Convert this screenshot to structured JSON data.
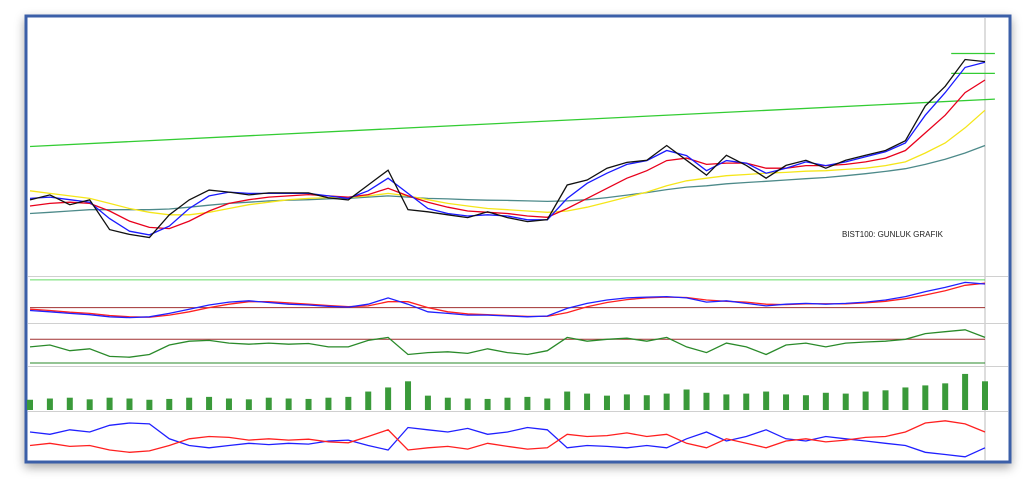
{
  "chart_data": [
    {
      "type": "line",
      "title": "BIST100: GUNLUK GRAFIK",
      "ylim": [
        0,
        100
      ],
      "series": [
        {
          "color": "#33cc33",
          "x": [
            0,
            48.5
          ],
          "values": [
            50.6,
            69.4
          ]
        },
        {
          "color": "#33cc33",
          "x": [
            46.3,
            48.5
          ],
          "values": [
            87.5,
            87.5
          ]
        },
        {
          "color": "#33cc33",
          "x": [
            46.3,
            48.5
          ],
          "values": [
            79.6,
            79.6
          ]
        },
        {
          "color": "#4d8a8a",
          "values": [
            24,
            24.5,
            25,
            25.5,
            25.5,
            25.5,
            25.5,
            25.8,
            26.5,
            27.3,
            28,
            28.5,
            29,
            29.3,
            29.5,
            29.8,
            30,
            30.5,
            31,
            30.5,
            30,
            29.8,
            29.5,
            29.3,
            29.2,
            29,
            28.8,
            29,
            29.5,
            30.3,
            31.3,
            32.3,
            33.5,
            34.5,
            35,
            35.8,
            36.3,
            36.8,
            37.3,
            37.8,
            38.3,
            39,
            39.8,
            40.7,
            41.8,
            43.5,
            45.5,
            48,
            51
          ]
        },
        {
          "color": "#f5e61a",
          "values": [
            33,
            32,
            31,
            30,
            28,
            26,
            24.5,
            23.5,
            23.5,
            24.5,
            26,
            27.5,
            28.5,
            29.5,
            30,
            30.3,
            30.3,
            31,
            32,
            31,
            29.5,
            28,
            27,
            26,
            25.5,
            25,
            24.5,
            25,
            26.5,
            28.5,
            30.5,
            32.5,
            35,
            37,
            38,
            39,
            39.5,
            40,
            40.3,
            40.8,
            41,
            41.5,
            42,
            43,
            44.5,
            48,
            52,
            58,
            65
          ]
        },
        {
          "color": "#e8001c",
          "values": [
            27,
            28,
            28.5,
            28,
            25,
            21,
            18.5,
            18,
            21,
            25,
            28,
            29.5,
            30.5,
            31,
            31.5,
            31,
            30.5,
            31.5,
            34,
            31,
            28.5,
            26.5,
            25,
            24.5,
            24,
            23,
            22.5,
            26,
            30,
            34,
            38,
            41,
            45,
            46,
            43.5,
            44,
            44,
            42,
            42,
            43,
            43,
            43.5,
            44.5,
            46,
            49,
            56,
            63,
            72,
            77
          ]
        },
        {
          "color": "#1a1aff",
          "values": [
            30,
            30.5,
            29.5,
            28.5,
            22,
            17,
            15.5,
            19,
            26,
            31,
            32.5,
            32,
            32,
            32,
            32,
            31,
            30,
            33,
            38,
            32,
            26,
            24,
            23,
            23.5,
            23,
            21.5,
            21.5,
            30,
            36,
            40,
            43.5,
            45,
            49,
            47,
            41,
            45,
            44,
            40,
            42,
            44.5,
            43,
            44.5,
            46.5,
            48.5,
            52,
            63,
            72,
            82,
            84
          ]
        },
        {
          "color": "#111111",
          "values": [
            29.4,
            31.4,
            27.5,
            29.4,
            17.6,
            15.7,
            14.5,
            23.5,
            29.4,
            33.3,
            32.5,
            31.4,
            32.2,
            32.2,
            32.2,
            30.2,
            29.4,
            35.3,
            41.2,
            25.5,
            24.7,
            23.5,
            22.4,
            24.7,
            22.4,
            20.8,
            21.6,
            35.3,
            37.3,
            42,
            44.3,
            45.1,
            51,
            45.1,
            39.2,
            47.1,
            43.1,
            38,
            43.1,
            45.1,
            42,
            45.1,
            47.1,
            49,
            52.9,
            66.7,
            74.5,
            85.1,
            84.3
          ]
        }
      ]
    },
    {
      "type": "line",
      "ylim": [
        0,
        100
      ],
      "hlines": [
        {
          "value": 98,
          "color": "#66dd66"
        },
        {
          "value": 31.8,
          "color": "#a03030"
        }
      ],
      "series": [
        {
          "color": "#ff2020",
          "values": [
            28,
            25,
            21,
            18,
            13,
            10,
            9,
            14,
            22,
            32,
            40,
            46,
            46,
            43,
            40,
            37,
            34,
            36,
            46,
            46,
            32,
            22,
            17,
            15,
            13,
            11,
            11,
            20,
            34,
            44,
            51,
            55,
            57,
            56,
            50,
            47,
            45,
            40,
            39,
            41,
            41,
            41,
            43,
            47,
            53,
            62,
            72,
            85,
            90
          ]
        },
        {
          "color": "#2020ff",
          "values": [
            25,
            22,
            18,
            15,
            10,
            8,
            10,
            18,
            28,
            38,
            45,
            48,
            44,
            40,
            38,
            35,
            33,
            40,
            55,
            40,
            22,
            18,
            14,
            14,
            12,
            10,
            12,
            30,
            42,
            50,
            55,
            57,
            58,
            55,
            45,
            48,
            42,
            36,
            40,
            42,
            40,
            42,
            45,
            50,
            58,
            70,
            80,
            92,
            88
          ]
        }
      ]
    },
    {
      "type": "line",
      "ylim": [
        0,
        100
      ],
      "hlines": [
        {
          "value": 65,
          "color": "#a03030"
        },
        {
          "value": 2.5,
          "color": "#2a8a2a"
        }
      ],
      "series": [
        {
          "color": "#2a8a2a",
          "values": [
            45,
            50,
            35,
            40,
            20,
            18,
            25,
            50,
            60,
            62,
            55,
            52,
            55,
            52,
            54,
            45,
            45,
            62,
            70,
            25,
            30,
            32,
            28,
            40,
            30,
            25,
            35,
            70,
            60,
            65,
            68,
            60,
            70,
            45,
            30,
            55,
            45,
            25,
            50,
            55,
            45,
            55,
            58,
            60,
            65,
            80,
            85,
            90,
            70
          ]
        }
      ]
    },
    {
      "type": "bar",
      "ylim": [
        0,
        100
      ],
      "color": "#3a9a3a",
      "values": [
        25,
        28,
        30,
        26,
        30,
        28,
        25,
        27,
        30,
        32,
        28,
        26,
        30,
        28,
        27,
        30,
        32,
        45,
        55,
        70,
        35,
        30,
        28,
        27,
        30,
        32,
        28,
        45,
        40,
        35,
        38,
        36,
        40,
        50,
        42,
        38,
        40,
        45,
        38,
        36,
        42,
        40,
        45,
        48,
        55,
        60,
        65,
        88,
        70
      ]
    },
    {
      "type": "line",
      "ylim": [
        0,
        100
      ],
      "series": [
        {
          "color": "#2020ff",
          "values": [
            60,
            55,
            65,
            60,
            75,
            80,
            78,
            45,
            30,
            25,
            30,
            35,
            32,
            35,
            33,
            40,
            42,
            30,
            20,
            70,
            65,
            60,
            68,
            55,
            60,
            70,
            65,
            25,
            30,
            28,
            25,
            30,
            25,
            45,
            60,
            40,
            50,
            65,
            45,
            40,
            50,
            45,
            40,
            35,
            30,
            15,
            10,
            5,
            25
          ]
        },
        {
          "color": "#ff2020",
          "values": [
            30,
            35,
            28,
            30,
            20,
            15,
            18,
            30,
            45,
            50,
            48,
            42,
            45,
            42,
            44,
            38,
            36,
            50,
            65,
            20,
            25,
            28,
            22,
            35,
            28,
            22,
            25,
            55,
            50,
            52,
            58,
            50,
            55,
            35,
            25,
            45,
            35,
            25,
            40,
            45,
            38,
            42,
            48,
            50,
            60,
            80,
            85,
            78,
            60
          ]
        }
      ]
    }
  ]
}
